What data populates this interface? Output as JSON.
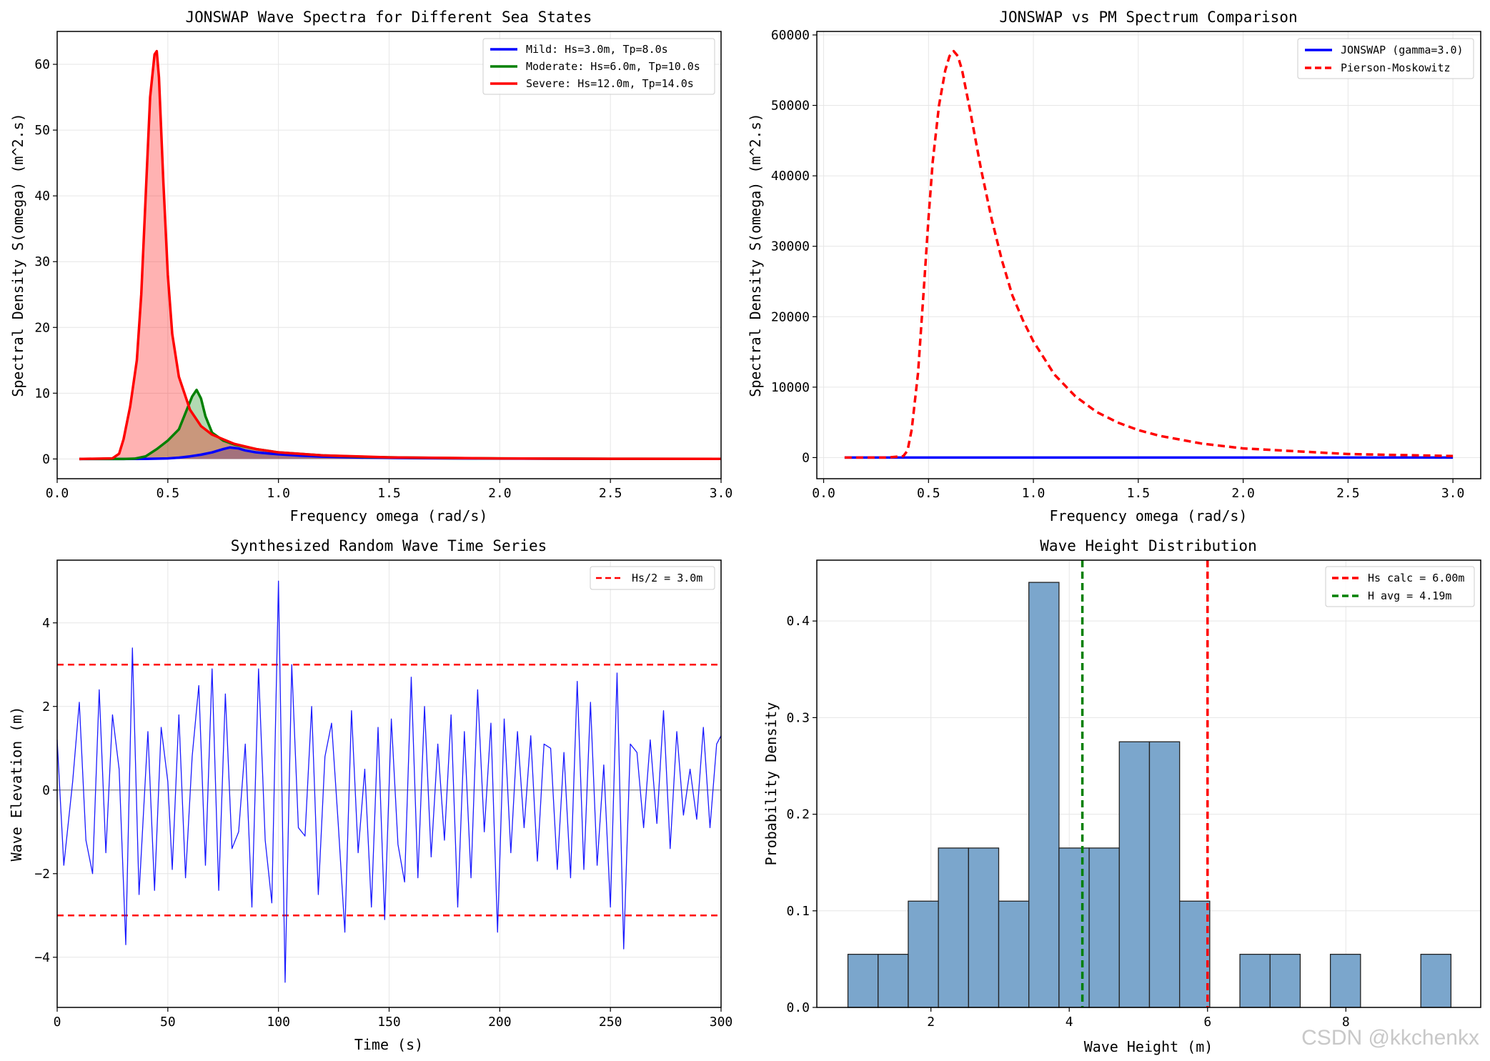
{
  "watermark": "CSDN @kkchenkx",
  "chart_data": [
    {
      "id": "spectra",
      "type": "line",
      "title": "JONSWAP Wave Spectra for Different Sea States",
      "xlabel": "Frequency omega (rad/s)",
      "ylabel": "Spectral Density S(omega) (m^2.s)",
      "xlim": [
        0,
        3
      ],
      "ylim": [
        -3,
        65
      ],
      "xticks": [
        0,
        0.5,
        1,
        1.5,
        2,
        2.5,
        3
      ],
      "xtick_labels": [
        "0.0",
        "0.5",
        "1.0",
        "1.5",
        "2.0",
        "2.5",
        "3.0"
      ],
      "yticks": [
        0,
        10,
        20,
        30,
        40,
        50,
        60
      ],
      "ytick_labels": [
        "0",
        "10",
        "20",
        "30",
        "40",
        "50",
        "60"
      ],
      "grid": true,
      "legend_position": "top-right",
      "series": [
        {
          "name": "Mild: Hs=3.0m, Tp=8.0s",
          "color": "#0000ff",
          "fill": true,
          "x": [
            0.1,
            0.3,
            0.4,
            0.5,
            0.55,
            0.6,
            0.65,
            0.7,
            0.75,
            0.78,
            0.82,
            0.85,
            0.9,
            1.0,
            1.1,
            1.2,
            1.4,
            1.6,
            1.8,
            2.0,
            2.5,
            3.0
          ],
          "y": [
            0,
            0,
            0.01,
            0.08,
            0.2,
            0.4,
            0.65,
            1.0,
            1.5,
            1.75,
            1.6,
            1.3,
            1.0,
            0.7,
            0.5,
            0.35,
            0.2,
            0.12,
            0.08,
            0.05,
            0.02,
            0.01
          ]
        },
        {
          "name": "Moderate: Hs=6.0m, Tp=10.0s",
          "color": "#008000",
          "fill": true,
          "x": [
            0.1,
            0.3,
            0.35,
            0.4,
            0.45,
            0.5,
            0.55,
            0.58,
            0.61,
            0.63,
            0.65,
            0.67,
            0.7,
            0.75,
            0.8,
            0.9,
            1.0,
            1.2,
            1.4,
            1.6,
            2.0,
            2.5,
            3.0
          ],
          "y": [
            0,
            0,
            0.05,
            0.4,
            1.5,
            2.8,
            4.5,
            7.0,
            9.5,
            10.5,
            9.2,
            6.5,
            4.0,
            2.8,
            2.2,
            1.5,
            1.0,
            0.55,
            0.3,
            0.2,
            0.08,
            0.03,
            0.01
          ]
        },
        {
          "name": "Severe: Hs=12.0m, Tp=14.0s",
          "color": "#ff0000",
          "fill": true,
          "x": [
            0.1,
            0.25,
            0.28,
            0.3,
            0.33,
            0.36,
            0.38,
            0.4,
            0.42,
            0.44,
            0.45,
            0.46,
            0.48,
            0.5,
            0.52,
            0.55,
            0.6,
            0.65,
            0.7,
            0.8,
            0.9,
            1.0,
            1.2,
            1.5,
            2.0,
            2.5,
            3.0
          ],
          "y": [
            0,
            0.1,
            0.8,
            3.0,
            8.0,
            15.0,
            25.0,
            40.0,
            55.0,
            61.5,
            62.0,
            58.0,
            42.0,
            28.0,
            19.0,
            12.5,
            7.5,
            5.0,
            3.7,
            2.3,
            1.5,
            1.0,
            0.55,
            0.25,
            0.08,
            0.03,
            0.01
          ]
        }
      ]
    },
    {
      "id": "compare",
      "type": "line",
      "title": "JONSWAP vs PM Spectrum Comparison",
      "xlabel": "Frequency omega (rad/s)",
      "ylabel": "Spectral Density S(omega) (m^2.s)",
      "xlim": [
        -0.0325,
        3.1325
      ],
      "ylim": [
        -3000,
        60500
      ],
      "xticks": [
        0,
        0.5,
        1,
        1.5,
        2,
        2.5,
        3
      ],
      "xtick_labels": [
        "0.0",
        "0.5",
        "1.0",
        "1.5",
        "2.0",
        "2.5",
        "3.0"
      ],
      "yticks": [
        0,
        10000,
        20000,
        30000,
        40000,
        50000,
        60000
      ],
      "ytick_labels": [
        "0",
        "10000",
        "20000",
        "30000",
        "40000",
        "50000",
        "60000"
      ],
      "grid": true,
      "legend_position": "top-right",
      "series": [
        {
          "name": "JONSWAP (gamma=3.0)",
          "color": "#0000ff",
          "dash": false,
          "x": [
            0.1,
            3.0
          ],
          "y": [
            0,
            0
          ]
        },
        {
          "name": "Pierson-Moskowitz",
          "color": "#ff0000",
          "dash": true,
          "x": [
            0.1,
            0.3,
            0.38,
            0.4,
            0.42,
            0.45,
            0.48,
            0.5,
            0.52,
            0.55,
            0.58,
            0.6,
            0.62,
            0.64,
            0.66,
            0.7,
            0.75,
            0.8,
            0.85,
            0.9,
            0.95,
            1.0,
            1.1,
            1.2,
            1.3,
            1.4,
            1.5,
            1.6,
            1.8,
            2.0,
            2.5,
            3.0
          ],
          "y": [
            0,
            0,
            200,
            1000,
            4000,
            12000,
            25000,
            34000,
            42000,
            50000,
            55000,
            57000,
            57700,
            57000,
            55000,
            49000,
            41000,
            34000,
            28000,
            23000,
            19500,
            16500,
            11800,
            8700,
            6500,
            5000,
            3900,
            3100,
            2000,
            1300,
            500,
            220
          ]
        }
      ]
    },
    {
      "id": "timeseries",
      "type": "line",
      "title": "Synthesized Random Wave Time Series",
      "xlabel": "Time (s)",
      "ylabel": "Wave Elevation (m)",
      "xlim": [
        0,
        300
      ],
      "ylim": [
        -5.2,
        5.5
      ],
      "xticks": [
        0,
        50,
        100,
        150,
        200,
        250,
        300
      ],
      "xtick_labels": [
        "0",
        "50",
        "100",
        "150",
        "200",
        "250",
        "300"
      ],
      "yticks": [
        -4,
        -2,
        0,
        2,
        4
      ],
      "ytick_labels": [
        "−4",
        "−2",
        "0",
        "2",
        "4"
      ],
      "grid": true,
      "legend_position": "top-right",
      "hlines": [
        {
          "y": 3.0,
          "color": "#ff0000",
          "dash": true,
          "label": "Hs/2 = 3.0m"
        },
        {
          "y": -3.0,
          "color": "#ff0000",
          "dash": true,
          "label": ""
        },
        {
          "y": 0,
          "color": "#000000",
          "dash": false,
          "label": ""
        }
      ],
      "series": [
        {
          "name": "elevation",
          "color": "#1a1aff",
          "x": [
            0,
            3,
            7,
            10,
            13,
            16,
            19,
            22,
            25,
            28,
            31,
            34,
            37,
            41,
            44,
            47,
            50,
            52,
            55,
            58,
            61,
            64,
            67,
            70,
            73,
            76,
            79,
            82,
            85,
            88,
            91,
            94,
            97,
            100,
            103,
            106,
            109,
            112,
            115,
            118,
            121,
            124,
            127,
            130,
            133,
            136,
            139,
            142,
            145,
            148,
            151,
            154,
            157,
            160,
            163,
            166,
            169,
            172,
            175,
            178,
            181,
            184,
            187,
            190,
            193,
            196,
            199,
            202,
            205,
            208,
            211,
            214,
            217,
            220,
            223,
            226,
            229,
            232,
            235,
            238,
            241,
            244,
            247,
            250,
            253,
            256,
            259,
            262,
            265,
            268,
            271,
            274,
            277,
            280,
            283,
            286,
            289,
            292,
            295,
            298,
            300
          ],
          "y": [
            1.2,
            -1.8,
            0.2,
            2.1,
            -1.2,
            -2.0,
            2.4,
            -1.5,
            1.8,
            0.5,
            -3.7,
            3.4,
            -2.5,
            1.4,
            -2.4,
            1.5,
            0.2,
            -1.9,
            1.8,
            -2.1,
            0.8,
            2.5,
            -1.8,
            2.9,
            -2.4,
            2.3,
            -1.4,
            -1.0,
            1.1,
            -2.8,
            2.9,
            -1.2,
            -2.7,
            5.0,
            -4.6,
            3.0,
            -0.9,
            -1.1,
            2.0,
            -2.5,
            0.8,
            1.6,
            -0.8,
            -3.4,
            1.9,
            -1.5,
            0.5,
            -2.8,
            1.5,
            -3.1,
            1.7,
            -1.3,
            -2.2,
            2.7,
            -2.1,
            2.0,
            -1.6,
            1.1,
            -1.2,
            1.8,
            -2.8,
            1.4,
            -2.1,
            2.4,
            -1.0,
            1.6,
            -3.4,
            1.7,
            -1.5,
            1.4,
            -0.9,
            1.3,
            -1.7,
            1.1,
            1.0,
            -1.9,
            0.9,
            -2.1,
            2.6,
            -1.9,
            2.1,
            -1.8,
            0.6,
            -2.8,
            2.8,
            -3.8,
            1.1,
            0.9,
            -0.9,
            1.2,
            -0.8,
            1.9,
            -1.4,
            1.4,
            -0.6,
            0.5,
            -0.7,
            1.5,
            -0.9,
            1.1,
            1.3
          ]
        }
      ]
    },
    {
      "id": "histogram",
      "type": "bar",
      "title": "Wave Height Distribution",
      "xlabel": "Wave Height (m)",
      "ylabel": "Probability Density",
      "xlim": [
        0.35,
        9.95
      ],
      "ylim": [
        0,
        0.463
      ],
      "xticks": [
        2,
        4,
        6,
        8
      ],
      "xtick_labels": [
        "2",
        "4",
        "6",
        "8"
      ],
      "yticks": [
        0,
        0.1,
        0.2,
        0.3,
        0.4
      ],
      "ytick_labels": [
        "0.0",
        "0.1",
        "0.2",
        "0.3",
        "0.4"
      ],
      "grid": true,
      "legend_position": "top-right",
      "bar_color": "#7ba6cc",
      "bin_edges": [
        0.8,
        1.236,
        1.672,
        2.108,
        2.544,
        2.98,
        3.416,
        3.852,
        4.288,
        4.724,
        5.16,
        5.596,
        6.032,
        6.468,
        6.904,
        7.34,
        7.776,
        8.212,
        8.648,
        9.084,
        9.52
      ],
      "values": [
        0.055,
        0.055,
        0.11,
        0.165,
        0.165,
        0.11,
        0.44,
        0.165,
        0.165,
        0.275,
        0.275,
        0.11,
        0,
        0.055,
        0.055,
        0,
        0.055,
        0,
        0,
        0.055
      ],
      "vlines": [
        {
          "x": 6.0,
          "color": "#ff0000",
          "label": "Hs calc = 6.00m"
        },
        {
          "x": 4.19,
          "color": "#008000",
          "label": "H avg = 4.19m"
        }
      ]
    }
  ]
}
